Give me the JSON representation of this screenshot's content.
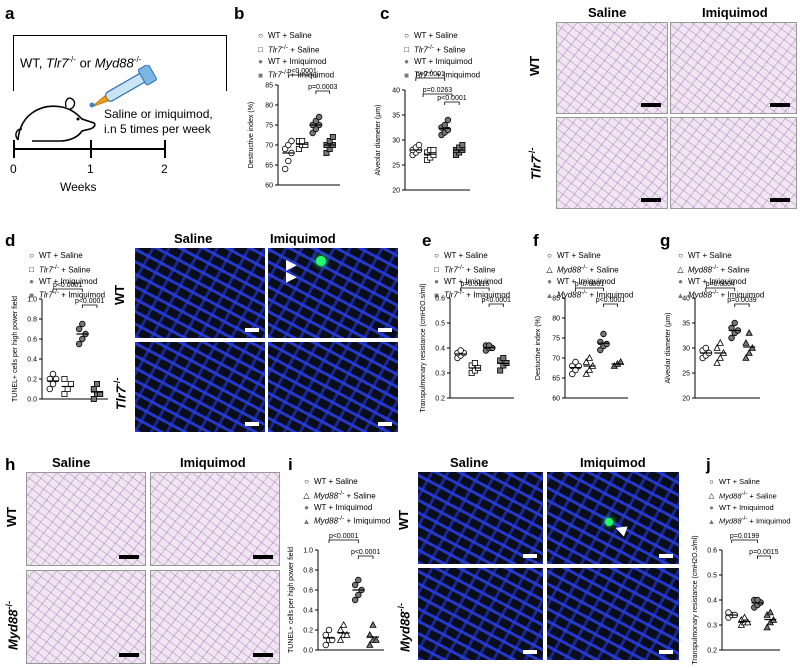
{
  "panel_labels": [
    "a",
    "b",
    "c",
    "d",
    "e",
    "f",
    "g",
    "h",
    "i",
    "j"
  ],
  "a": {
    "title_html": "WT, Tlr7-/- or Myd88-/-",
    "treatment_line1": "Saline or imiquimod,",
    "treatment_line2": "i.n 5 times per week",
    "weeks_label": "Weeks",
    "ticks": [
      "0",
      "1",
      "2"
    ]
  },
  "legend_tlr7": [
    "WT + Saline",
    "Tlr7-/- + Saline",
    "WT + Imiquimod",
    "Tlr7-/- + Imiquimod"
  ],
  "legend_myd88": [
    "WT + Saline",
    "Myd88-/- + Saline",
    "WT + Imiquimod",
    "Myd88-/- + Imiquimod"
  ],
  "col_saline": "Saline",
  "col_imiquimod": "Imiquimod",
  "row_wt": "WT",
  "row_tlr7": "Tlr7-/-",
  "row_myd88": "Myd88-/-",
  "chart_data": [
    {
      "panel": "b",
      "type": "scatter",
      "ylabel": "Destructive index (%)",
      "ylim": [
        60,
        85
      ],
      "yticks": [
        60,
        65,
        70,
        75,
        80,
        85
      ],
      "pvalues": [
        "p<0.0001",
        "p=0.0003"
      ],
      "series": [
        {
          "name": "WT + Saline",
          "values": [
            64,
            66,
            68,
            69,
            70,
            71
          ]
        },
        {
          "name": "Tlr7-/- + Saline",
          "values": [
            69,
            70,
            70,
            71,
            71
          ]
        },
        {
          "name": "WT + Imiquimod",
          "values": [
            73,
            74,
            75,
            75,
            76,
            77
          ]
        },
        {
          "name": "Tlr7-/- + Imiquimod",
          "values": [
            68,
            69,
            70,
            70,
            71,
            72
          ]
        }
      ]
    },
    {
      "panel": "c",
      "type": "scatter",
      "ylabel": "Alveolar diameter (μm)",
      "ylim": [
        20,
        40
      ],
      "yticks": [
        20,
        25,
        30,
        35,
        40
      ],
      "pvalues": [
        "p<0.0001",
        "p=0.0263",
        "p<0.0001"
      ],
      "series": [
        {
          "name": "WT + Saline",
          "values": [
            27,
            27.5,
            28,
            28,
            28.5,
            29
          ]
        },
        {
          "name": "Tlr7-/- + Saline",
          "values": [
            26,
            26.5,
            27,
            27.5,
            28,
            28
          ]
        },
        {
          "name": "WT + Imiquimod",
          "values": [
            31,
            31.5,
            32,
            32.5,
            33,
            34
          ]
        },
        {
          "name": "Tlr7-/- + Imiquimod",
          "values": [
            27,
            27.5,
            28,
            28,
            28.5,
            29
          ]
        }
      ]
    },
    {
      "panel": "d",
      "type": "scatter",
      "ylabel": "TUNEL+ cells per high power field",
      "ylim": [
        0,
        1.0
      ],
      "yticks": [
        0.0,
        0.2,
        0.4,
        0.6,
        0.8,
        1.0
      ],
      "pvalues": [
        "p<0.0001",
        "p<0.0001"
      ],
      "series": [
        {
          "name": "WT + Saline",
          "values": [
            0.1,
            0.15,
            0.2,
            0.2,
            0.25
          ]
        },
        {
          "name": "Tlr7-/- + Saline",
          "values": [
            0.05,
            0.1,
            0.15,
            0.2
          ]
        },
        {
          "name": "WT + Imiquimod",
          "values": [
            0.55,
            0.6,
            0.65,
            0.7,
            0.75
          ]
        },
        {
          "name": "Tlr7-/- + Imiquimod",
          "values": [
            0.0,
            0.05,
            0.05,
            0.1,
            0.15
          ]
        }
      ]
    },
    {
      "panel": "e",
      "type": "scatter",
      "ylabel": "Transpulmonary resistance (cmH2O.s/ml)",
      "ylim": [
        0.2,
        0.6
      ],
      "yticks": [
        0.2,
        0.3,
        0.4,
        0.5,
        0.6
      ],
      "pvalues": [
        "p=0.0116",
        "p<0.0001"
      ],
      "series": [
        {
          "name": "WT + Saline",
          "values": [
            0.36,
            0.37,
            0.38,
            0.38,
            0.39
          ]
        },
        {
          "name": "Tlr7-/- + Saline",
          "values": [
            0.3,
            0.31,
            0.32,
            0.33,
            0.34
          ]
        },
        {
          "name": "WT + Imiquimod",
          "values": [
            0.39,
            0.4,
            0.4,
            0.41,
            0.41
          ]
        },
        {
          "name": "Tlr7-/- + Imiquimod",
          "values": [
            0.31,
            0.33,
            0.34,
            0.35,
            0.36
          ]
        }
      ]
    },
    {
      "panel": "f",
      "type": "scatter",
      "ylabel": "Destuctive index (%)",
      "ylim": [
        60,
        85
      ],
      "yticks": [
        60,
        65,
        70,
        75,
        80,
        85
      ],
      "pvalues": [
        "p<0.0001",
        "p<0.0001"
      ],
      "series": [
        {
          "name": "WT + Saline",
          "values": [
            66,
            67,
            68,
            68,
            69
          ]
        },
        {
          "name": "Myd88-/- + Saline",
          "values": [
            66,
            67,
            68,
            69,
            70
          ]
        },
        {
          "name": "WT + Imiquimod",
          "values": [
            72,
            73,
            73.5,
            74,
            76
          ]
        },
        {
          "name": "Myd88-/- + Imiquimod",
          "values": [
            68,
            68.5,
            69
          ]
        }
      ]
    },
    {
      "panel": "g",
      "type": "scatter",
      "ylabel": "Alveolar diameter (μm)",
      "ylim": [
        20,
        40
      ],
      "yticks": [
        20,
        25,
        30,
        35,
        40
      ],
      "pvalues": [
        "p=0.0004",
        "p=0.0039"
      ],
      "series": [
        {
          "name": "WT + Saline",
          "values": [
            28,
            28.5,
            29,
            29.5,
            30
          ]
        },
        {
          "name": "Myd88-/- + Saline",
          "values": [
            27,
            28,
            29,
            30,
            31
          ]
        },
        {
          "name": "WT + Imiquimod",
          "values": [
            32,
            33,
            33.5,
            34,
            35
          ]
        },
        {
          "name": "Myd88-/- + Imiquimod",
          "values": [
            28,
            29,
            30,
            31,
            33
          ]
        }
      ]
    },
    {
      "panel": "i",
      "type": "scatter",
      "ylabel": "TUNEL+ cells per high power field",
      "ylim": [
        0,
        1.0
      ],
      "yticks": [
        0.0,
        0.2,
        0.4,
        0.6,
        0.8,
        1.0
      ],
      "pvalues": [
        "p<0.0001",
        "p<0.0001"
      ],
      "series": [
        {
          "name": "WT + Saline",
          "values": [
            0.05,
            0.1,
            0.1,
            0.15,
            0.2
          ]
        },
        {
          "name": "Myd88-/- + Saline",
          "values": [
            0.1,
            0.15,
            0.15,
            0.2,
            0.25
          ]
        },
        {
          "name": "WT + Imiquimod",
          "values": [
            0.5,
            0.55,
            0.6,
            0.65,
            0.7
          ]
        },
        {
          "name": "Myd88-/- + Imiquimod",
          "values": [
            0.05,
            0.1,
            0.1,
            0.15,
            0.25
          ]
        }
      ]
    },
    {
      "panel": "j",
      "type": "scatter",
      "ylabel": "Transpulmonary resistance (cmH2O.s/ml)",
      "ylim": [
        0.2,
        0.6
      ],
      "yticks": [
        0.2,
        0.3,
        0.4,
        0.5,
        0.6
      ],
      "pvalues": [
        "p=0.0199",
        "p=0.0015"
      ],
      "series": [
        {
          "name": "WT + Saline",
          "values": [
            0.33,
            0.34,
            0.34,
            0.35
          ]
        },
        {
          "name": "Myd88-/- + Saline",
          "values": [
            0.3,
            0.31,
            0.31,
            0.32,
            0.33
          ]
        },
        {
          "name": "WT + Imiquimod",
          "values": [
            0.37,
            0.38,
            0.39,
            0.4,
            0.4
          ]
        },
        {
          "name": "Myd88-/- + Imiquimod",
          "values": [
            0.29,
            0.31,
            0.32,
            0.34,
            0.35
          ]
        }
      ]
    }
  ]
}
